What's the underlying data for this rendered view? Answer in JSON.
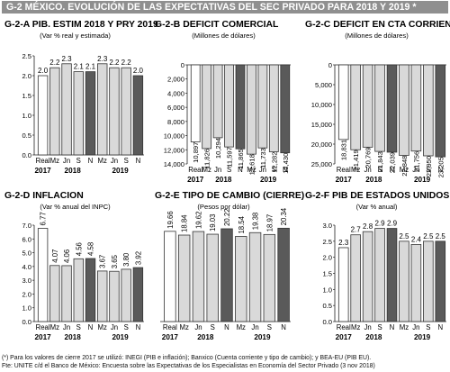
{
  "page": {
    "title": "G-2  MÉXICO. EVOLUCIÓN DE LAS EXPECTATIVAS DEL SEC PRIVADO PARA 2018 Y 2019 *",
    "notes": [
      "(*) Para los valores de cierre 2017 se utilizó: INEGI (PIB e inflación); Banxico (Cuenta corriente y tipo de cambio); y BEA-EU (PIB EU).",
      "Fte: UNITE c/d el Banco de México: Encuesta sobre las Expectativas de los Especialistas en Economía del Sector Privado (3 nov 2018)"
    ]
  },
  "colors": {
    "real": "#ffffff",
    "forecast": "#d9d9d9",
    "latest": "#5a5a5a",
    "outline": "#333333",
    "title_bar": "#8f8f8f"
  },
  "chart_data": [
    {
      "id": "G-2-A",
      "title": "PIB. ESTIM 2018 Y PRY 2019",
      "subtitle": "(Var % real y estimada)",
      "type": "bar",
      "categories": [
        "Real",
        "Mz",
        "Jn",
        "S",
        "N",
        "Mz",
        "Jn",
        "S",
        "N"
      ],
      "years": [
        {
          "label": "2017",
          "span": [
            0,
            0
          ]
        },
        {
          "label": "2018",
          "span": [
            1,
            4
          ]
        },
        {
          "label": "2019",
          "span": [
            5,
            8
          ]
        }
      ],
      "values": [
        2.0,
        2.2,
        2.3,
        2.1,
        2.1,
        2.3,
        2.2,
        2.2,
        2.0
      ],
      "value_labels": [
        "2.0",
        "2.2",
        "2.3",
        "2.1",
        "2.1",
        "2.3",
        "2.2",
        "2.2",
        "2.0"
      ],
      "ylim": [
        0,
        2.5
      ],
      "yticks": [
        0,
        0.5,
        1.0,
        1.5,
        2.0,
        2.5
      ],
      "ytick_labels": [
        "0.0",
        "0.5",
        "1.0",
        "1.5",
        "2.0",
        "2.5"
      ],
      "inverted": false,
      "label_position": "above"
    },
    {
      "id": "G-2-B",
      "title": "DEFICIT COMERCIAL",
      "subtitle": "(Millones de dólares)",
      "type": "bar",
      "categories": [
        "Real",
        "Mz",
        "Jn",
        "S",
        "N",
        "Mz",
        "Jn",
        "S",
        "N"
      ],
      "years": [
        {
          "label": "2017",
          "span": [
            0,
            0
          ]
        },
        {
          "label": "2018",
          "span": [
            1,
            4
          ]
        },
        {
          "label": "2019",
          "span": [
            5,
            8
          ]
        }
      ],
      "values": [
        10897,
        11826,
        10294,
        11597,
        11865,
        12618,
        11733,
        12282,
        12430
      ],
      "value_labels": [
        "10,897",
        "11,826",
        "10,294",
        "11,597",
        "11,865",
        "12,618",
        "11,733",
        "12,282",
        "12,430"
      ],
      "ylim": [
        0,
        14000
      ],
      "yticks": [
        0,
        2000,
        4000,
        6000,
        8000,
        10000,
        12000,
        14000
      ],
      "ytick_labels": [
        "0",
        "2,000",
        "4,000",
        "6,000",
        "8,000",
        "10,000",
        "12,000",
        "14,000"
      ],
      "inverted": true,
      "label_position": "below"
    },
    {
      "id": "G-2-C",
      "title": "DEFICIT EN CTA CORRIENTE",
      "subtitle": "(Millones de dólares)",
      "type": "bar",
      "categories": [
        "Real",
        "Mz",
        "Jn",
        "S",
        "N",
        "Mz",
        "Jn",
        "S",
        "N"
      ],
      "years": [
        {
          "label": "2017",
          "span": [
            0,
            0
          ]
        },
        {
          "label": "2018",
          "span": [
            1,
            4
          ]
        },
        {
          "label": "2019",
          "span": [
            5,
            8
          ]
        }
      ],
      "values": [
        18831,
        21419,
        20769,
        21843,
        22039,
        22848,
        21756,
        22950,
        23205
      ],
      "value_labels": [
        "18,831",
        "21,419",
        "20,769",
        "21,843",
        "22,039",
        "22,848",
        "21,756",
        "22,950",
        "23,205"
      ],
      "ylim": [
        0,
        25000
      ],
      "yticks": [
        0,
        5000,
        10000,
        15000,
        20000,
        25000
      ],
      "ytick_labels": [
        "0",
        "5,000",
        "10,000",
        "15,000",
        "20,000",
        "25,000"
      ],
      "inverted": true,
      "label_position": "below"
    },
    {
      "id": "G-2-D",
      "title": "INFLACION",
      "subtitle": "(Var % anual del INPC)",
      "type": "bar",
      "categories": [
        "Real",
        "Mz",
        "Jn",
        "S",
        "N",
        "Mz",
        "Jn",
        "S",
        "N"
      ],
      "years": [
        {
          "label": "2017",
          "span": [
            0,
            0
          ]
        },
        {
          "label": "2018",
          "span": [
            1,
            4
          ]
        },
        {
          "label": "2019",
          "span": [
            5,
            8
          ]
        }
      ],
      "values": [
        6.77,
        4.07,
        4.06,
        4.56,
        4.58,
        3.67,
        3.65,
        3.8,
        3.92
      ],
      "value_labels": [
        "6.77",
        "4.07",
        "4.06",
        "4.56",
        "4.58",
        "3.67",
        "3.65",
        "3.80",
        "3.92"
      ],
      "ylim": [
        0,
        7.0
      ],
      "yticks": [
        0,
        1,
        2,
        3,
        4,
        5,
        6,
        7
      ],
      "ytick_labels": [
        "0.0",
        "1.0",
        "2.0",
        "3.0",
        "4.0",
        "5.0",
        "6.0",
        "7.0"
      ],
      "inverted": false,
      "label_position": "above"
    },
    {
      "id": "G-2-E",
      "title": "TIPO DE CAMBIO (CIERRE)",
      "subtitle": "(Pesos por dólar)",
      "type": "bar",
      "categories": [
        "Real",
        "Mz",
        "Jn",
        "S",
        "N",
        "Mz",
        "Jn",
        "S",
        "N"
      ],
      "years": [
        {
          "label": "2017",
          "span": [
            0,
            0
          ]
        },
        {
          "label": "2018",
          "span": [
            1,
            4
          ]
        },
        {
          "label": "2019",
          "span": [
            5,
            8
          ]
        }
      ],
      "values": [
        19.66,
        18.84,
        19.62,
        19.03,
        20.22,
        18.54,
        19.38,
        18.97,
        20.34
      ],
      "value_labels": [
        "19.66",
        "18.84",
        "19.62",
        "19.03",
        "20.22",
        "18.54",
        "19.38",
        "18.97",
        "20.34"
      ],
      "ylim": [
        0,
        21
      ],
      "yticks": [],
      "ytick_labels": [],
      "inverted": false,
      "label_position": "above"
    },
    {
      "id": "G-2-F",
      "title": "PIB DE ESTADOS UNIDOS",
      "subtitle": "(Var % anual)",
      "type": "bar",
      "categories": [
        "Real",
        "Mz",
        "Jn",
        "S",
        "N",
        "Mz",
        "Jn",
        "S",
        "N"
      ],
      "years": [
        {
          "label": "2017",
          "span": [
            0,
            0
          ]
        },
        {
          "label": "2018",
          "span": [
            1,
            4
          ]
        },
        {
          "label": "2019",
          "span": [
            5,
            8
          ]
        }
      ],
      "values": [
        2.3,
        2.7,
        2.8,
        2.9,
        2.9,
        2.5,
        2.4,
        2.5,
        2.5
      ],
      "value_labels": [
        "2.3",
        "2.7",
        "2.8",
        "2.9",
        "2.9",
        "2.5",
        "2.4",
        "2.5",
        "2.5"
      ],
      "ylim": [
        0,
        3.0
      ],
      "yticks": [
        0,
        0.5,
        1.0,
        1.5,
        2.0,
        2.5,
        3.0
      ],
      "ytick_labels": [
        "0.0",
        "0.5",
        "1.0",
        "1.5",
        "2.0",
        "2.5",
        "3.0"
      ],
      "inverted": false,
      "label_position": "above"
    }
  ]
}
